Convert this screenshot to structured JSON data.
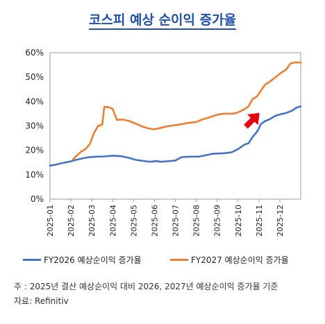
{
  "title": "코스피 예상 순이익 증가율",
  "notes": {
    "note": "주   : 2025년 결산 예상순이익 대비 2026, 2027년 예상순이익 증가율 기준",
    "source": "자료: Refinitiv"
  },
  "chart_data": {
    "type": "line",
    "y_ticks": [
      "0%",
      "10%",
      "20%",
      "30%",
      "40%",
      "50%",
      "60%"
    ],
    "ylim": [
      0,
      60
    ],
    "x_ticks": [
      "2025-01",
      "2025-02",
      "2025-03",
      "2025-04",
      "2025-05",
      "2025-06",
      "2025-07",
      "2025-08",
      "2025-09",
      "2025-10",
      "2025-11",
      "2025-12"
    ],
    "xlim": [
      0,
      12
    ],
    "grid": false,
    "legend_position": "bottom",
    "series": [
      {
        "name": "FY2026 예상순이익 증가율",
        "color": "#4472c4",
        "points": [
          [
            0.0,
            13.7
          ],
          [
            0.3,
            14.2
          ],
          [
            0.6,
            14.8
          ],
          [
            0.9,
            15.3
          ],
          [
            1.2,
            16.0
          ],
          [
            1.5,
            16.6
          ],
          [
            1.8,
            17.1
          ],
          [
            2.2,
            17.4
          ],
          [
            2.6,
            17.5
          ],
          [
            3.0,
            17.8
          ],
          [
            3.4,
            17.6
          ],
          [
            3.8,
            16.9
          ],
          [
            4.1,
            16.1
          ],
          [
            4.5,
            15.6
          ],
          [
            4.8,
            15.3
          ],
          [
            5.1,
            15.6
          ],
          [
            5.3,
            15.3
          ],
          [
            5.6,
            15.5
          ],
          [
            6.0,
            15.8
          ],
          [
            6.3,
            17.2
          ],
          [
            6.7,
            17.4
          ],
          [
            7.1,
            17.4
          ],
          [
            7.4,
            17.9
          ],
          [
            7.8,
            18.6
          ],
          [
            8.3,
            18.8
          ],
          [
            8.7,
            19.2
          ],
          [
            9.0,
            20.5
          ],
          [
            9.3,
            22.3
          ],
          [
            9.5,
            22.9
          ],
          [
            9.7,
            25.5
          ],
          [
            9.9,
            27.5
          ],
          [
            10.0,
            29.0
          ],
          [
            10.1,
            30.8
          ],
          [
            10.3,
            32.0
          ],
          [
            10.5,
            32.7
          ],
          [
            10.8,
            34.2
          ],
          [
            11.1,
            34.9
          ],
          [
            11.3,
            35.3
          ],
          [
            11.6,
            36.3
          ],
          [
            11.8,
            37.5
          ],
          [
            12.0,
            38.0
          ]
        ]
      },
      {
        "name": "FY2027 예상순이익 증가율",
        "color": "#ed7d31",
        "points": [
          [
            1.1,
            16.3
          ],
          [
            1.3,
            18.0
          ],
          [
            1.5,
            19.5
          ],
          [
            1.7,
            20.5
          ],
          [
            1.9,
            22.5
          ],
          [
            2.1,
            27.0
          ],
          [
            2.3,
            30.0
          ],
          [
            2.5,
            30.5
          ],
          [
            2.6,
            37.8
          ],
          [
            2.8,
            37.7
          ],
          [
            3.0,
            37.0
          ],
          [
            3.2,
            32.5
          ],
          [
            3.5,
            32.6
          ],
          [
            3.8,
            32.0
          ],
          [
            4.1,
            31.0
          ],
          [
            4.4,
            29.8
          ],
          [
            4.7,
            29.0
          ],
          [
            5.0,
            28.6
          ],
          [
            5.3,
            29.2
          ],
          [
            5.6,
            29.8
          ],
          [
            6.0,
            30.3
          ],
          [
            6.3,
            30.7
          ],
          [
            6.6,
            31.2
          ],
          [
            7.0,
            31.6
          ],
          [
            7.3,
            32.7
          ],
          [
            7.6,
            33.4
          ],
          [
            8.0,
            34.6
          ],
          [
            8.3,
            35.0
          ],
          [
            8.6,
            35.0
          ],
          [
            8.9,
            35.2
          ],
          [
            9.1,
            36.0
          ],
          [
            9.3,
            36.8
          ],
          [
            9.5,
            38.0
          ],
          [
            9.7,
            41.0
          ],
          [
            9.9,
            42.0
          ],
          [
            10.1,
            44.5
          ],
          [
            10.3,
            47.0
          ],
          [
            10.5,
            48.0
          ],
          [
            10.8,
            50.0
          ],
          [
            11.1,
            52.0
          ],
          [
            11.3,
            53.0
          ],
          [
            11.5,
            55.5
          ],
          [
            11.7,
            56.0
          ],
          [
            12.0,
            56.0
          ]
        ]
      }
    ],
    "annotation": {
      "type": "arrow",
      "color": "#e60012",
      "x": 9.7,
      "y": 32.5
    }
  }
}
